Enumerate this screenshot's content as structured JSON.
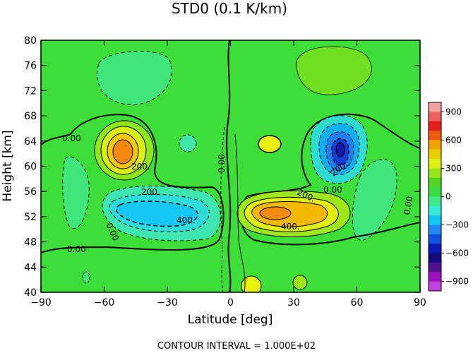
{
  "chart_data": {
    "type": "contour",
    "title": "STD0 (0.1 K/km)",
    "xlabel": "Latitude [deg]",
    "ylabel": "Height [km]",
    "footer": "CONTOUR INTERVAL = 1.000E+02",
    "xlim": [
      -90,
      90
    ],
    "ylim": [
      40,
      80
    ],
    "xticks": [
      -90,
      -60,
      -30,
      0,
      30,
      60,
      90
    ],
    "yticks": [
      40,
      44,
      48,
      52,
      56,
      60,
      64,
      68,
      72,
      76,
      80
    ],
    "colorbar": {
      "ticks": [
        900,
        600,
        300,
        0,
        -300,
        -600,
        -900
      ],
      "range": [
        -1000,
        1000
      ],
      "levels": [
        "#f4a0a0",
        "#f06060",
        "#e81c1c",
        "#f25a0c",
        "#f5a300",
        "#e8d000",
        "#e0f010",
        "#9ae81c",
        "#4ed620",
        "#38dc40",
        "#40e88c",
        "#38e8d8",
        "#10c8f4",
        "#2088f0",
        "#1450e0",
        "#1018b8",
        "#140a80",
        "#501090",
        "#a010c0",
        "#c040e0"
      ],
      "colors_note": "warm=positive, cool=negative"
    },
    "contour_labels": [
      "0.00",
      "200.",
      "200.",
      "400.",
      "0.00",
      "0.00",
      "0.00",
      "0.00",
      "200.",
      "0.00",
      "200.",
      "400.",
      "0.00",
      "0.00",
      "0.00"
    ],
    "features": [
      {
        "lat": -48,
        "height": 62,
        "value": 600,
        "sign": "positive"
      },
      {
        "lat": -30,
        "height": 53,
        "value": -400,
        "sign": "negative"
      },
      {
        "lat": 50,
        "height": 62,
        "value": -800,
        "sign": "negative"
      },
      {
        "lat": 25,
        "height": 52.5,
        "value": 500,
        "sign": "positive"
      },
      {
        "lat": -60,
        "height": 75,
        "value": -150,
        "sign": "negative"
      },
      {
        "lat": 45,
        "height": 75,
        "value": 150,
        "sign": "positive"
      }
    ]
  }
}
